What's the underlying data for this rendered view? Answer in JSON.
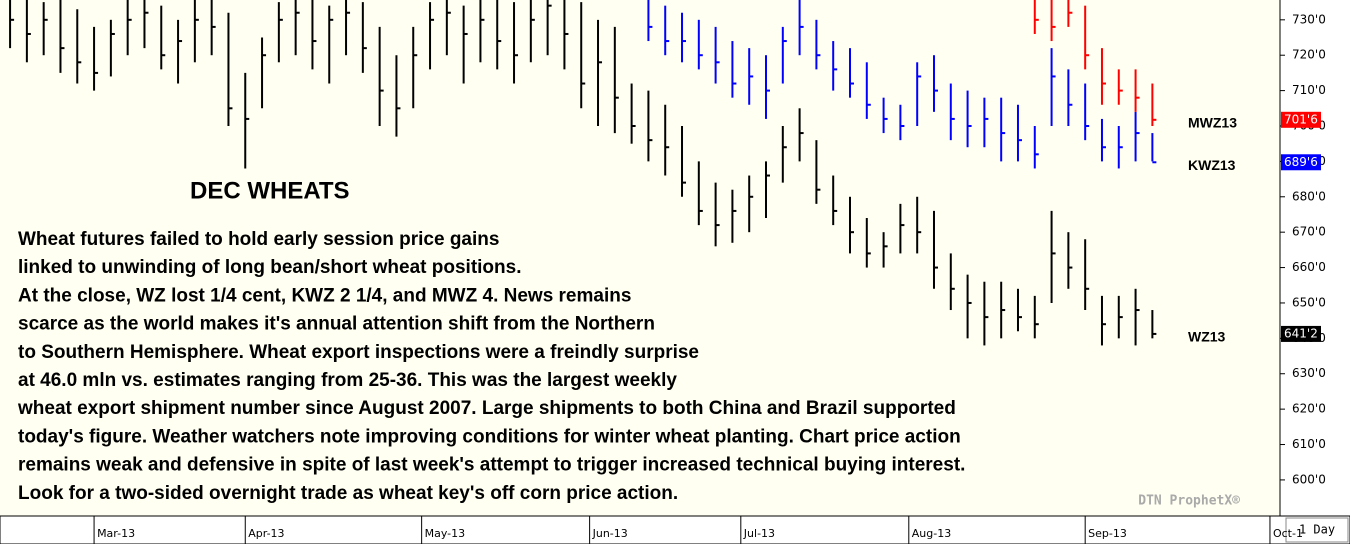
{
  "chart_data": {
    "type": "ohlc",
    "title": "DEC WHEATS",
    "annotation_lines": [
      "Wheat futures failed to hold early session price gains",
      "linked to unwinding of long bean/short wheat positions.",
      "At the close, WZ lost 1/4 cent, KWZ 2 1/4, and MWZ 4. News remains",
      "scarce as the world makes it's annual attention shift from the Northern",
      "to Southern Hemisphere. Wheat export inspections were a freindly surprise",
      "at 46.0 mln vs. estimates ranging from 25-36. This was the largest weekly",
      "wheat export shipment number since August 2007. Large shipments to both China and Brazil supported",
      "today's figure. Weather watchers note improving conditions for winter wheat planting. Chart price action",
      "remains weak and defensive in spite of last week's attempt to trigger increased technical buying interest.",
      "Look for a two-sided overnight trade as wheat key's off corn price action."
    ],
    "watermark": "DTN ProphetX®",
    "interval_button": "1 Day",
    "xlim": [
      -1.2,
      150.6
    ],
    "xticks": [
      {
        "value": 10,
        "label": "Mar-13"
      },
      {
        "value": 28,
        "label": "Apr-13"
      },
      {
        "value": 49,
        "label": "May-13"
      },
      {
        "value": 69,
        "label": "Jun-13"
      },
      {
        "value": 87,
        "label": "Jul-13"
      },
      {
        "value": 107,
        "label": "Aug-13"
      },
      {
        "value": 128,
        "label": "Sep-13"
      },
      {
        "value": 150,
        "label": "Oct-1"
      }
    ],
    "ylim": [
      591.5,
      735.6
    ],
    "yticks": [
      {
        "value": 600,
        "label": "600'0"
      },
      {
        "value": 610,
        "label": "610'0"
      },
      {
        "value": 620,
        "label": "620'0"
      },
      {
        "value": 630,
        "label": "630'0"
      },
      {
        "value": 640,
        "label": "640'0"
      },
      {
        "value": 650,
        "label": "650'0"
      },
      {
        "value": 660,
        "label": "660'0"
      },
      {
        "value": 670,
        "label": "670'0"
      },
      {
        "value": 680,
        "label": "680'0"
      },
      {
        "value": 690,
        "label": "690'0"
      },
      {
        "value": 700,
        "label": "700'0"
      },
      {
        "value": 710,
        "label": "710'0"
      },
      {
        "value": 720,
        "label": "720'0"
      },
      {
        "value": 730,
        "label": "730'0"
      }
    ],
    "series": [
      {
        "name": "WZ13",
        "color": "#000000",
        "last_label": "641'2",
        "x": [
          0,
          2,
          4,
          6,
          8,
          10,
          12,
          14,
          16,
          18,
          20,
          22,
          24,
          26,
          28,
          30,
          32,
          34,
          36,
          38,
          40,
          42,
          44,
          46,
          48,
          50,
          52,
          54,
          56,
          58,
          60,
          62,
          64,
          66,
          68,
          70,
          72,
          74,
          76,
          78,
          80,
          82,
          84,
          86,
          88,
          90,
          92,
          94,
          96,
          98,
          100,
          102,
          104,
          106,
          108,
          110,
          112,
          114,
          116,
          118,
          120,
          122,
          124,
          126,
          128,
          130,
          132,
          134,
          136
        ],
        "high": [
          738,
          736,
          735,
          737,
          733,
          728,
          730,
          736,
          738,
          734,
          730,
          736,
          737,
          732,
          715,
          725,
          735,
          737,
          736,
          734,
          736,
          735,
          728,
          720,
          728,
          735,
          737,
          734,
          736,
          736,
          735,
          738,
          737,
          738,
          735,
          730,
          728,
          712,
          710,
          706,
          700,
          690,
          684,
          682,
          686,
          690,
          700,
          705,
          696,
          686,
          680,
          674,
          670,
          678,
          680,
          676,
          664,
          658,
          656,
          656,
          654,
          652,
          676,
          670,
          668,
          652,
          652,
          654,
          648
        ],
        "low": [
          722,
          718,
          720,
          715,
          712,
          710,
          714,
          720,
          722,
          716,
          712,
          718,
          720,
          700,
          688,
          705,
          718,
          720,
          716,
          712,
          720,
          715,
          700,
          697,
          705,
          716,
          720,
          712,
          718,
          716,
          712,
          718,
          720,
          716,
          705,
          700,
          698,
          695,
          690,
          686,
          680,
          672,
          666,
          667,
          670,
          674,
          684,
          690,
          678,
          672,
          664,
          660,
          660,
          664,
          664,
          654,
          648,
          640,
          638,
          640,
          642,
          640,
          650,
          654,
          648,
          638,
          640,
          638,
          640
        ],
        "values": [
          730,
          726,
          730,
          722,
          718,
          715,
          726,
          730,
          732,
          720,
          724,
          730,
          728,
          705,
          702,
          720,
          730,
          732,
          724,
          730,
          732,
          722,
          710,
          705,
          720,
          730,
          732,
          726,
          730,
          724,
          720,
          730,
          734,
          726,
          712,
          718,
          708,
          700,
          696,
          694,
          684,
          676,
          672,
          676,
          680,
          686,
          694,
          698,
          682,
          676,
          670,
          664,
          666,
          672,
          670,
          660,
          654,
          650,
          646,
          648,
          646,
          644,
          664,
          660,
          654,
          644,
          646,
          648,
          641.25
        ]
      },
      {
        "name": "KWZ13",
        "color": "#0000ff",
        "last_label": "689'6",
        "x": [
          76,
          78,
          80,
          82,
          84,
          86,
          88,
          90,
          92,
          94,
          96,
          98,
          100,
          102,
          104,
          106,
          108,
          110,
          112,
          114,
          116,
          118,
          120,
          122,
          124,
          126,
          128,
          130,
          132,
          134,
          136
        ],
        "high": [
          736,
          734,
          732,
          730,
          728,
          724,
          722,
          720,
          728,
          736,
          730,
          724,
          722,
          718,
          708,
          706,
          718,
          720,
          712,
          710,
          708,
          708,
          706,
          700,
          722,
          716,
          712,
          702,
          700,
          704,
          698
        ],
        "low": [
          724,
          720,
          718,
          716,
          712,
          708,
          706,
          702,
          712,
          720,
          716,
          710,
          708,
          702,
          698,
          696,
          700,
          704,
          696,
          694,
          694,
          690,
          690,
          688,
          700,
          700,
          696,
          690,
          688,
          690,
          690
        ],
        "values": [
          728,
          724,
          724,
          720,
          718,
          712,
          714,
          710,
          724,
          728,
          720,
          716,
          712,
          706,
          702,
          700,
          714,
          710,
          702,
          700,
          702,
          698,
          696,
          692,
          714,
          706,
          700,
          694,
          694,
          698,
          689.75
        ]
      },
      {
        "name": "MWZ13",
        "color": "#ff0000",
        "last_label": "701'6",
        "x": [
          122,
          124,
          126,
          128,
          130,
          132,
          134,
          136
        ],
        "high": [
          740,
          736,
          740,
          734,
          722,
          716,
          716,
          712
        ],
        "low": [
          726,
          724,
          728,
          716,
          706,
          706,
          704,
          700
        ],
        "values": [
          730,
          728,
          732,
          720,
          712,
          710,
          708,
          701.75
        ]
      }
    ]
  }
}
